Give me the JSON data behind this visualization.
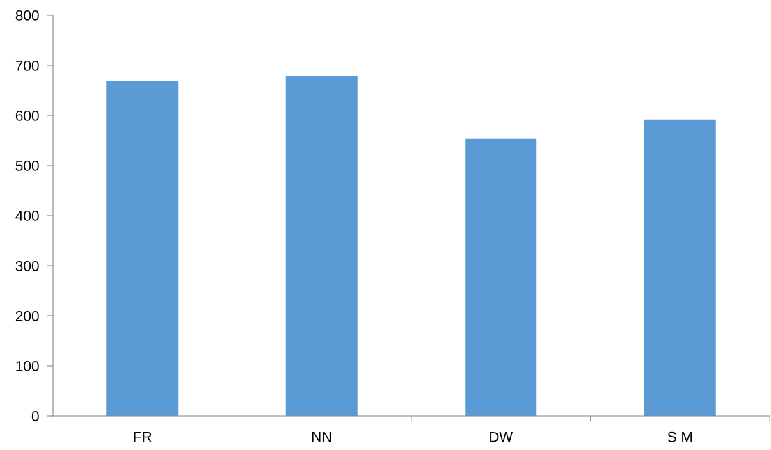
{
  "chart_data": {
    "type": "bar",
    "categories": [
      "FR",
      "NN",
      "DW",
      "S M"
    ],
    "values": [
      668,
      679,
      553,
      592
    ],
    "color": "#5b9bd5",
    "ylim": [
      0,
      800
    ],
    "yticks": [
      0,
      100,
      200,
      300,
      400,
      500,
      600,
      700,
      800
    ],
    "grid": false
  }
}
